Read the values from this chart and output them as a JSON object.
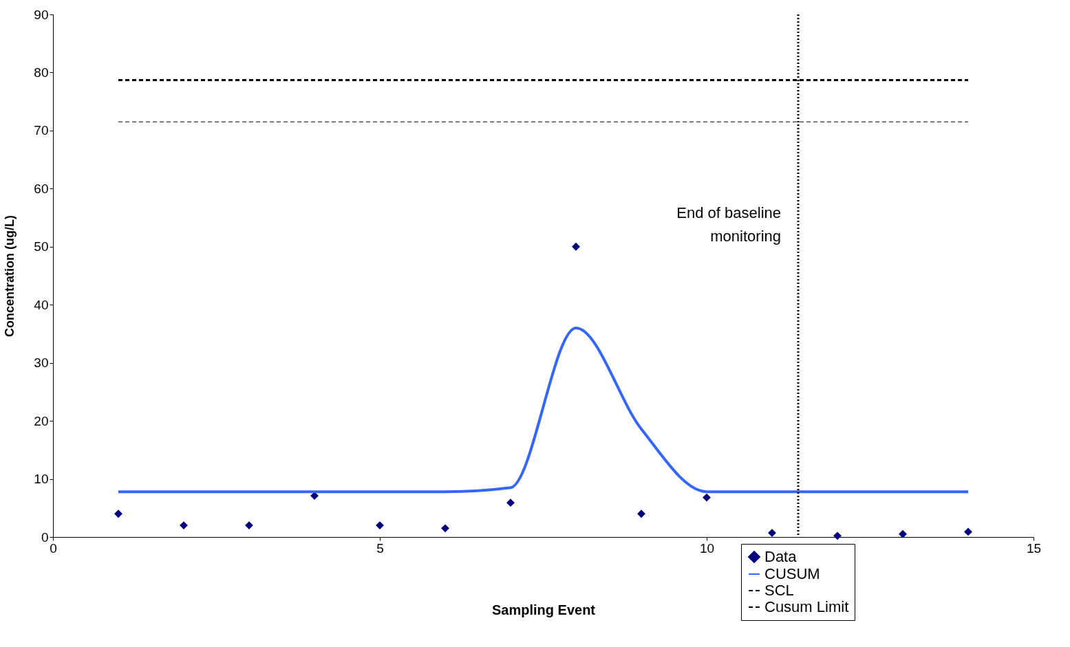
{
  "chart_data": {
    "type": "scatter",
    "xlabel": "Sampling Event",
    "ylabel": "Concentration (ug/L)",
    "xlim": [
      0,
      15
    ],
    "xticks": [
      0,
      5,
      10,
      15
    ],
    "ylim": [
      0,
      90
    ],
    "yticks": [
      0,
      10,
      20,
      30,
      40,
      50,
      60,
      70,
      80,
      90
    ],
    "grid": false,
    "legend": "bottom right",
    "series": [
      {
        "name": "Data",
        "marker": "diamond",
        "color": "#000080",
        "x": [
          1,
          2,
          3,
          4,
          5,
          6,
          7,
          8,
          9,
          10,
          11,
          12,
          13,
          14
        ],
        "values": [
          4.0,
          2.0,
          2.0,
          7.1,
          2.0,
          1.5,
          5.9,
          50.0,
          4.0,
          6.8,
          0.7,
          0.2,
          0.5,
          0.9
        ]
      },
      {
        "name": "CUSUM",
        "type": "line",
        "line_style": "solid",
        "color": "#3366ff",
        "x": [
          1,
          2,
          3,
          4,
          5,
          6,
          7,
          8,
          9,
          10,
          11,
          12,
          13,
          14
        ],
        "values": [
          7.8,
          7.8,
          7.8,
          7.8,
          7.8,
          7.8,
          8.5,
          36.0,
          18.6,
          7.8,
          7.8,
          7.8,
          7.8,
          7.8
        ]
      },
      {
        "name": "SCL",
        "type": "line",
        "line_style": "dashed",
        "color": "#000000",
        "x": [
          1,
          14
        ],
        "values": [
          71.5,
          71.5
        ]
      },
      {
        "name": "Cusum Limit",
        "type": "line",
        "line_style": "dashed",
        "color": "#000000",
        "x": [
          1,
          14
        ],
        "values": [
          78.7,
          78.7
        ]
      }
    ],
    "ref_lines": [
      {
        "axis": "x",
        "value": 11.4,
        "label": "End of baseline monitoring",
        "line_style": "dotted",
        "color": "#000000"
      }
    ]
  }
}
